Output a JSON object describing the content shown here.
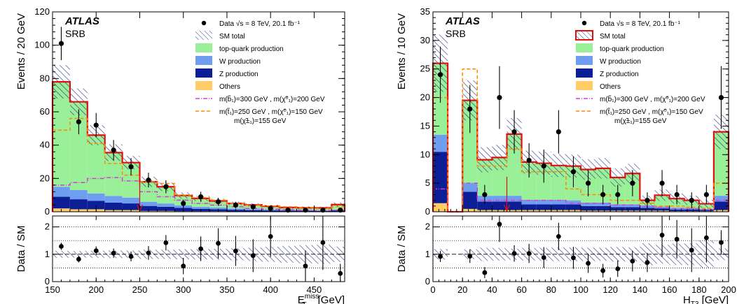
{
  "colors": {
    "top": "#99f099",
    "w": "#6f9ef0",
    "z": "#0b1e96",
    "others": "#ffcc66",
    "sm_line": "#e01010",
    "hatch": "#2a2f80",
    "sig1": "#d040d0",
    "sig2": "#ff8c00",
    "arrow": "#e01010"
  },
  "chart_data": [
    {
      "type": "histogram",
      "atlas_label": "ATLAS",
      "region_label": "SRB",
      "xlabel": "E_T^miss [GeV]",
      "xlabel_main": "E",
      "xlabel_sub": "T",
      "xlabel_sup": "miss",
      "xlabel_unit": " [GeV]",
      "ylabel": "Events / 20 GeV",
      "ratio_ylabel": "Data / SM",
      "xlim": [
        150,
        485
      ],
      "ylim": [
        0,
        120
      ],
      "ratio_ylim": [
        0,
        2.4
      ],
      "x_ticks": [
        150,
        200,
        250,
        300,
        350,
        400,
        450
      ],
      "y_ticks": [
        0,
        20,
        40,
        60,
        80,
        100,
        120
      ],
      "ratio_y_ticks": [
        0,
        1,
        2
      ],
      "ratio_gridlines": [
        0.5,
        1,
        1.5,
        2
      ],
      "cut_value": 250,
      "legend": {
        "data": "Data √s = 8 TeV, 20.1 fb⁻¹",
        "sm_total": "SM total",
        "top": "top-quark production",
        "w": "W production",
        "z": "Z production",
        "others": "Others",
        "sig1": "m(b̃₁)=300 GeV , m(χ̃⁰₁)=200 GeV",
        "sig2": "m(t̃₁)=250 GeV , m(χ̃⁰₁)=150 GeV",
        "sig2_cont": "m(χ̃±₁)=155 GeV"
      },
      "bins": [
        150,
        170,
        190,
        210,
        230,
        250,
        270,
        290,
        310,
        330,
        350,
        370,
        390,
        410,
        430,
        450,
        470,
        485
      ],
      "stack": {
        "others": [
          2,
          1.5,
          1.5,
          1,
          1,
          0.5,
          0.5,
          0.3,
          0.3,
          0.3,
          0.2,
          0.2,
          0.2,
          0.2,
          0.2,
          0.2,
          0.2
        ],
        "z": [
          7,
          6,
          5,
          4.5,
          4,
          3,
          2.5,
          2,
          1.5,
          1.2,
          1,
          0.8,
          0.6,
          0.5,
          0.4,
          0.3,
          0.6
        ],
        "w": [
          6,
          5.5,
          4.5,
          4,
          3.5,
          2.5,
          2,
          1.5,
          1.2,
          1,
          0.8,
          0.6,
          0.5,
          0.4,
          0.3,
          0.3,
          0.5
        ],
        "top": [
          63,
          53,
          35,
          26,
          21,
          12,
          10,
          6,
          5,
          4,
          3,
          2.5,
          2,
          1.5,
          1.5,
          1.5,
          3
        ]
      },
      "sm_total": [
        78,
        66,
        46,
        35.5,
        29.5,
        18,
        15,
        9.8,
        8,
        6.5,
        5,
        4.1,
        3.3,
        2.6,
        2.4,
        2.3,
        4.3
      ],
      "sm_unc": [
        10,
        8,
        6,
        5,
        4,
        3,
        2.5,
        1.8,
        1.5,
        1.3,
        1.1,
        1,
        0.9,
        0.8,
        0.8,
        0.8,
        1.2
      ],
      "signal1": [
        16,
        17.5,
        20,
        20.5,
        18.5,
        12,
        9,
        7,
        5,
        4,
        3,
        2,
        1.5,
        1.2,
        1,
        0.8,
        1
      ],
      "signal2": [
        49,
        56,
        41,
        29,
        22,
        18,
        17,
        10,
        8.5,
        7,
        5,
        4,
        3.5,
        3,
        2.5,
        2,
        3
      ],
      "data": {
        "x": [
          160,
          180,
          200,
          220,
          240,
          260,
          280,
          300,
          320,
          340,
          360,
          380,
          400,
          420,
          440,
          460,
          480
        ],
        "y": [
          101,
          54,
          52,
          37,
          27,
          19,
          15,
          5,
          9,
          6,
          4,
          3,
          2,
          1,
          1,
          1,
          1
        ],
        "err": [
          10,
          7.5,
          7.3,
          6.1,
          5.2,
          4.4,
          3.9,
          2.2,
          3,
          2.4,
          2,
          1.7,
          1.4,
          1,
          1,
          1,
          1
        ]
      },
      "ratio": {
        "y": [
          1.29,
          0.82,
          1.13,
          1.04,
          0.92,
          1.05,
          1.42,
          0.57,
          1.2,
          1.4,
          1.12,
          0.95,
          1.65,
          null,
          0.57,
          1.43,
          0.3
        ],
        "err": [
          0.13,
          0.12,
          0.16,
          0.17,
          0.18,
          0.25,
          0.28,
          0.3,
          0.45,
          0.55,
          0.55,
          0.6,
          0.75,
          null,
          0.57,
          1.0,
          0.35
        ]
      }
    },
    {
      "type": "histogram",
      "atlas_label": "ATLAS",
      "region_label": "SRB",
      "xlabel": "H_T3 [GeV]",
      "xlabel_main": "H",
      "xlabel_sub": "T3",
      "xlabel_sup": "",
      "xlabel_unit": " [GeV]",
      "ylabel": "Events / 10 GeV",
      "ratio_ylabel": "Data / SM",
      "xlim": [
        0,
        200
      ],
      "ylim": [
        0,
        35
      ],
      "ratio_ylim": [
        0,
        2.4
      ],
      "x_ticks": [
        0,
        20,
        40,
        60,
        80,
        100,
        120,
        140,
        160,
        180,
        200
      ],
      "y_ticks": [
        0,
        5,
        10,
        15,
        20,
        25,
        30,
        35
      ],
      "ratio_y_ticks": [
        0,
        1,
        2
      ],
      "ratio_gridlines": [
        0.5,
        1,
        1.5,
        2
      ],
      "cut_value": 50,
      "legend": {
        "data": "Data √s = 8 TeV, 20.1 fb⁻¹",
        "sm_total": "SM total",
        "top": "top-quark production",
        "w": "W production",
        "z": "Z production",
        "others": "Others",
        "sig1": "m(b̃₁)=300 GeV , m(χ̃⁰₁)=200 GeV",
        "sig2": "m(t̃₁)=250 GeV , m(χ̃⁰₁)=150 GeV",
        "sig2_cont": "m(χ̃±₁)=155 GeV"
      },
      "bins": [
        0,
        10,
        20,
        30,
        40,
        50,
        60,
        70,
        80,
        90,
        100,
        110,
        120,
        130,
        140,
        150,
        160,
        170,
        180,
        190,
        200
      ],
      "stack": {
        "others": [
          1.5,
          0,
          0.5,
          0.3,
          0.3,
          0.3,
          0.3,
          0.3,
          0.3,
          0.3,
          0.2,
          0.2,
          0.2,
          0.2,
          0.2,
          0.2,
          0.1,
          0.1,
          0.1,
          0.3
        ],
        "z": [
          9,
          0,
          3,
          1.5,
          1.5,
          1.5,
          1,
          1,
          1,
          1,
          0.8,
          0.8,
          0.6,
          0.6,
          0.5,
          0.4,
          0.3,
          0.3,
          0.2,
          1.5
        ],
        "w": [
          3,
          0,
          1.5,
          1,
          1,
          1,
          0.8,
          0.8,
          0.8,
          0.7,
          0.6,
          0.6,
          0.5,
          0.5,
          0.4,
          0.3,
          0.3,
          0.3,
          0.2,
          1
        ],
        "top": [
          12.5,
          0,
          14.5,
          6.3,
          6.7,
          10.8,
          6.6,
          6.4,
          6,
          6,
          5.8,
          6,
          4.7,
          5.4,
          0.9,
          2,
          1.6,
          1.3,
          0.9,
          11.2
        ]
      },
      "sm_total": [
        26,
        0,
        19.5,
        9.1,
        9.5,
        13.6,
        8.7,
        8.5,
        8.1,
        8,
        7.4,
        7.6,
        6,
        6.7,
        2,
        2.9,
        2.3,
        2,
        1.4,
        14
      ],
      "sm_unc": [
        5,
        0,
        3.5,
        2.2,
        2.2,
        2.8,
        2,
        2,
        2,
        2,
        1.8,
        1.8,
        1.6,
        1.7,
        0.8,
        1,
        0.9,
        0.8,
        0.7,
        3
      ],
      "signal1": [
        4,
        0,
        5,
        2,
        2,
        2,
        2,
        2,
        2,
        1.5,
        1.5,
        1.5,
        1.2,
        1.2,
        1,
        0.8,
        0.6,
        0.5,
        0.4,
        2
      ],
      "signal2": [
        20,
        0,
        25,
        8,
        8,
        11,
        7,
        7,
        7,
        4,
        3,
        3,
        2,
        2,
        1.5,
        1,
        1,
        0.8,
        0.6,
        5
      ],
      "data": {
        "x": [
          5,
          25,
          35,
          45,
          55,
          65,
          75,
          85,
          95,
          105,
          115,
          125,
          135,
          145,
          155,
          165,
          175,
          185,
          195
        ],
        "y": [
          24,
          18,
          3,
          20,
          14,
          9,
          8,
          14,
          7,
          5,
          3,
          3,
          5,
          2,
          5,
          3,
          2,
          3,
          20
        ],
        "err": [
          4.9,
          4.2,
          1.7,
          5.5,
          3.8,
          3,
          2.9,
          3.8,
          2.7,
          2.3,
          1.7,
          1.7,
          2.3,
          1.4,
          2.3,
          1.7,
          1.4,
          1.7,
          5.5
        ]
      },
      "ratio": {
        "y": [
          0.92,
          0.93,
          0.33,
          2.1,
          1.03,
          1.03,
          0.88,
          1.65,
          0.87,
          0.67,
          0.4,
          0.47,
          0.75,
          0.7,
          1.7,
          1.55,
          1.15,
          1.6,
          1.43
        ],
        "err": [
          0.2,
          0.25,
          0.2,
          0.65,
          0.3,
          0.35,
          0.38,
          0.5,
          0.4,
          0.35,
          0.25,
          0.3,
          0.38,
          0.35,
          0.8,
          0.7,
          0.8,
          0.9,
          0.45
        ]
      }
    }
  ]
}
